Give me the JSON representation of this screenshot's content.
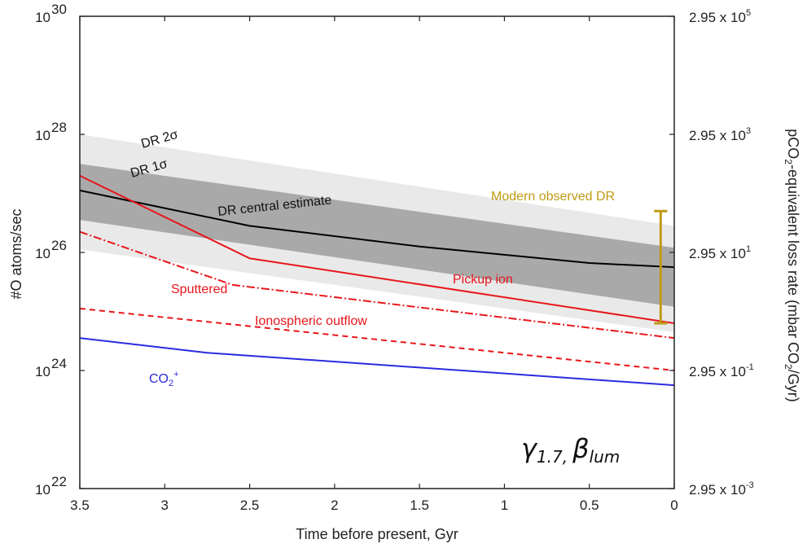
{
  "chart_data": {
    "type": "line",
    "xlabel": "Time before present, Gyr",
    "ylabel": "#O atoms/sec",
    "ylabel_right_parts": [
      "pCO",
      "2",
      "-equivalent loss rate (mbar CO",
      "2",
      "/Gyr)"
    ],
    "xlim": [
      3.5,
      0
    ],
    "ylim": [
      1e+22,
      1e+30
    ],
    "yscale": "log",
    "x_ticks": [
      {
        "v": 3.5,
        "label": "3.5"
      },
      {
        "v": 3,
        "label": "3"
      },
      {
        "v": 2.5,
        "label": "2.5"
      },
      {
        "v": 2,
        "label": "2"
      },
      {
        "v": 1.5,
        "label": "1.5"
      },
      {
        "v": 1,
        "label": "1"
      },
      {
        "v": 0.5,
        "label": "0.5"
      },
      {
        "v": 0,
        "label": "0"
      }
    ],
    "y_ticks": [
      {
        "exp": 22,
        "base": "10",
        "sup": "22"
      },
      {
        "exp": 24,
        "base": "10",
        "sup": "24"
      },
      {
        "exp": 26,
        "base": "10",
        "sup": "26"
      },
      {
        "exp": 28,
        "base": "10",
        "sup": "28"
      },
      {
        "exp": 30,
        "base": "10",
        "sup": "30"
      }
    ],
    "y_right_ticks": [
      {
        "exp": 22,
        "base": "2.95 x 10",
        "sup": "-3"
      },
      {
        "exp": 24,
        "base": "2.95 x 10",
        "sup": "-1"
      },
      {
        "exp": 26,
        "base": "2.95 x 10",
        "sup": "1"
      },
      {
        "exp": 28,
        "base": "2.95 x 10",
        "sup": "3"
      },
      {
        "exp": 30,
        "base": "2.95 x 10",
        "sup": "5"
      }
    ],
    "bands": [
      {
        "name": "DR 2σ",
        "color": "#e9e9e9",
        "x": [
          3.5,
          0
        ],
        "upper": [
          28.0,
          26.45
        ],
        "lower": [
          26.05,
          24.65
        ]
      },
      {
        "name": "DR 1σ",
        "color": "#a9a9a9",
        "x": [
          3.5,
          0
        ],
        "upper": [
          27.5,
          26.08
        ],
        "lower": [
          26.55,
          25.08
        ]
      }
    ],
    "series": [
      {
        "name": "DR central estimate",
        "color": "#000000",
        "dash": "",
        "x": [
          3.5,
          2.5,
          1.5,
          0.5,
          0
        ],
        "log10_y": [
          27.05,
          26.45,
          26.1,
          25.82,
          25.75
        ]
      },
      {
        "name": "Pickup ion",
        "color": "#e8161b",
        "dash": "",
        "x": [
          3.5,
          2.5,
          0
        ],
        "log10_y": [
          27.3,
          25.9,
          24.8
        ]
      },
      {
        "name": "Sputtered",
        "color": "#e8161b",
        "dash": "10,3,2,3",
        "x": [
          3.5,
          2.6,
          0
        ],
        "log10_y": [
          26.35,
          25.45,
          24.55
        ]
      },
      {
        "name": "Ionospheric outflow",
        "color": "#e8161b",
        "dash": "7,5",
        "x": [
          3.5,
          0
        ],
        "log10_y": [
          25.05,
          24.0
        ]
      },
      {
        "name": "CO2+",
        "color": "#2a2ae0",
        "dash": "",
        "x": [
          3.5,
          2.75,
          0
        ],
        "log10_y": [
          24.55,
          24.3,
          23.75
        ]
      }
    ],
    "modern_observed": {
      "label": "Modern observed DR",
      "color": "#c09a14",
      "x": 0.08,
      "log10_low": 24.8,
      "log10_high": 26.7
    },
    "annotations": {
      "dr2": "DR 2σ",
      "dr1": "DR 1σ",
      "central": "DR central estimate",
      "pickup": "Pickup ion",
      "sputtered": "Sputtered",
      "ionospheric": "Ionospheric outflow",
      "co2_main": "CO",
      "co2_sub": "2",
      "co2_sup": "+",
      "model_gamma": "γ",
      "model_gamma_sub": "1.7,",
      "model_beta": "β",
      "model_beta_sub": "lum"
    }
  }
}
